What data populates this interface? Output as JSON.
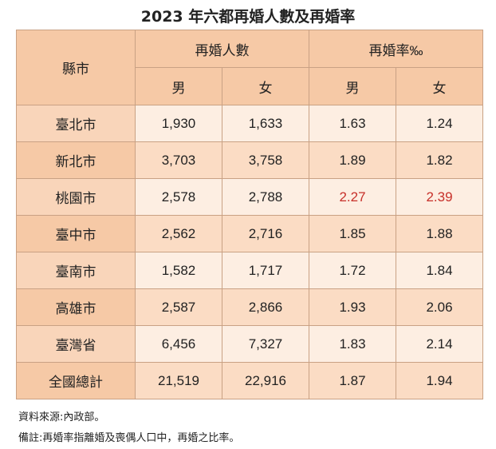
{
  "title": "2023 年六都再婚人數及再婚率",
  "header": {
    "city": "縣市",
    "count_group": "再婚人數",
    "rate_group": "再婚率‰",
    "male": "男",
    "female": "女"
  },
  "rows": [
    {
      "city": "臺北市",
      "count_m": "1,930",
      "count_f": "1,633",
      "rate_m": "1.63",
      "rate_f": "1.24"
    },
    {
      "city": "新北市",
      "count_m": "3,703",
      "count_f": "3,758",
      "rate_m": "1.89",
      "rate_f": "1.82"
    },
    {
      "city": "桃園市",
      "count_m": "2,578",
      "count_f": "2,788",
      "rate_m": "2.27",
      "rate_f": "2.39"
    },
    {
      "city": "臺中市",
      "count_m": "2,562",
      "count_f": "2,716",
      "rate_m": "1.85",
      "rate_f": "1.88"
    },
    {
      "city": "臺南市",
      "count_m": "1,582",
      "count_f": "1,717",
      "rate_m": "1.72",
      "rate_f": "1.84"
    },
    {
      "city": "高雄市",
      "count_m": "2,587",
      "count_f": "2,866",
      "rate_m": "1.93",
      "rate_f": "2.06"
    },
    {
      "city": "臺灣省",
      "count_m": "6,456",
      "count_f": "7,327",
      "rate_m": "1.83",
      "rate_f": "2.14"
    },
    {
      "city": "全國總計",
      "count_m": "21,519",
      "count_f": "22,916",
      "rate_m": "1.87",
      "rate_f": "1.94"
    }
  ],
  "highlight_color": "#c7302a",
  "source": "資料來源:內政部。",
  "remark": "備註:再婚率指離婚及喪偶人口中，再婚之比率。"
}
